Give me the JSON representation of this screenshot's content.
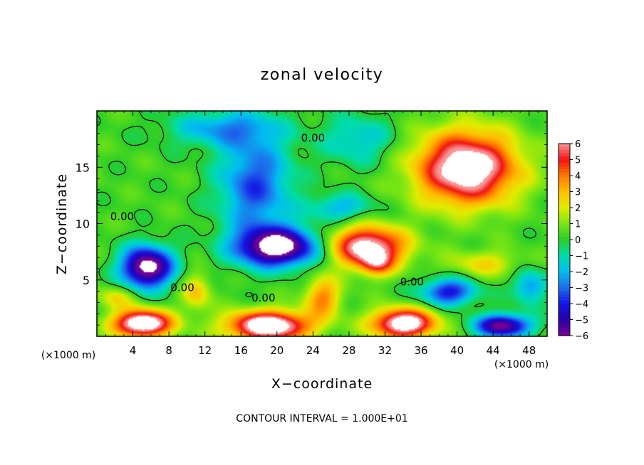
{
  "chart_data": {
    "type": "heatmap",
    "title": "zonal velocity",
    "xlabel": "X−coordinate",
    "ylabel": "Z−coordinate",
    "x_unit": "(×1000 m)",
    "z_unit": "(×1000 m)",
    "footer": "CONTOUR INTERVAL = 1.000E+01",
    "xlim": [
      0,
      50
    ],
    "ylim": [
      0,
      20
    ],
    "x_ticks": [
      4,
      8,
      12,
      16,
      20,
      24,
      28,
      32,
      36,
      40,
      44,
      48
    ],
    "y_ticks": [
      5,
      10,
      15
    ],
    "colorbar_range": [
      -6,
      6
    ],
    "colorbar_ticks": [
      "6",
      "5",
      "4",
      "3",
      "2",
      "1",
      "0",
      "−1",
      "−2",
      "−3",
      "−4",
      "−5",
      "−6"
    ],
    "background_value": 0.3,
    "features": [
      {
        "x": 41,
        "z": 15,
        "sx": 5.5,
        "sy": 3.2,
        "amp": 7.5
      },
      {
        "x": 30,
        "z": 8.0,
        "sx": 4.2,
        "sy": 1.8,
        "amp": 6.8
      },
      {
        "x": 31,
        "z": 6.5,
        "sx": 1.8,
        "sy": 1.1,
        "amp": 3.0
      },
      {
        "x": 20,
        "z": 8.0,
        "sx": 4.5,
        "sy": 1.7,
        "amp": -7.5
      },
      {
        "x": 5.5,
        "z": 6.2,
        "sx": 2.8,
        "sy": 1.8,
        "amp": -7.5
      },
      {
        "x": 17.5,
        "z": 13.5,
        "sx": 4.0,
        "sy": 4.5,
        "amp": -3.8
      },
      {
        "x": 14,
        "z": 18.5,
        "sx": 6.0,
        "sy": 1.6,
        "amp": -2.6
      },
      {
        "x": 29,
        "z": 17.5,
        "sx": 4.0,
        "sy": 2.2,
        "amp": -2.0
      },
      {
        "x": 27,
        "z": 11.5,
        "sx": 3.5,
        "sy": 1.2,
        "amp": -2.4
      },
      {
        "x": 5,
        "z": 1.2,
        "sx": 3.2,
        "sy": 1.2,
        "amp": 8.0
      },
      {
        "x": 19,
        "z": 1.0,
        "sx": 4.5,
        "sy": 1.3,
        "amp": 8.0
      },
      {
        "x": 34,
        "z": 1.2,
        "sx": 3.5,
        "sy": 1.3,
        "amp": 7.5
      },
      {
        "x": 25,
        "z": 3.5,
        "sx": 2.0,
        "sy": 1.8,
        "amp": 3.5
      },
      {
        "x": 11,
        "z": 4.0,
        "sx": 1.6,
        "sy": 1.6,
        "amp": 2.5
      },
      {
        "x": 39,
        "z": 4.0,
        "sx": 3.0,
        "sy": 1.2,
        "amp": -4.5
      },
      {
        "x": 45,
        "z": 1.0,
        "sx": 3.0,
        "sy": 1.0,
        "amp": -6.5
      },
      {
        "x": 43,
        "z": 6.5,
        "sx": 4.0,
        "sy": 1.2,
        "amp": 2.0
      },
      {
        "x": 48,
        "z": 4.5,
        "sx": 1.8,
        "sy": 1.5,
        "amp": -3.0
      },
      {
        "x": 2,
        "z": 3.5,
        "sx": 2.0,
        "sy": 1.0,
        "amp": 2.0
      }
    ],
    "contour_labels": [
      {
        "text": "0.00",
        "x": 24,
        "z": 17.3
      },
      {
        "text": "0.00",
        "x": 2.8,
        "z": 10.3
      },
      {
        "text": "0.00",
        "x": 9.5,
        "z": 4.0
      },
      {
        "text": "0.00",
        "x": 18.5,
        "z": 3.1
      },
      {
        "text": "0.00",
        "x": 35,
        "z": 4.5
      }
    ]
  }
}
